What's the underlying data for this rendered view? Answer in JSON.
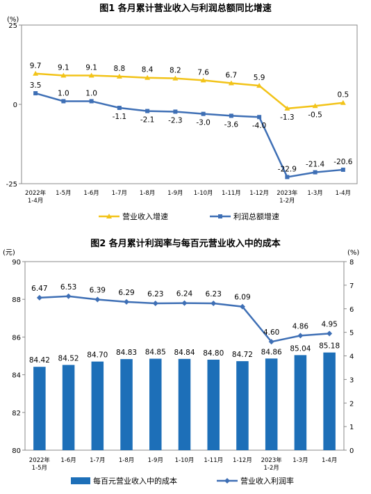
{
  "chart_data": [
    {
      "type": "line",
      "title": "图1  各月累计营业收入与利润总额同比增速",
      "unit_label": "(%)",
      "categories": [
        [
          "2022年",
          "1-4月"
        ],
        [
          "1-5月"
        ],
        [
          "1-6月"
        ],
        [
          "1-7月"
        ],
        [
          "1-8月"
        ],
        [
          "1-9月"
        ],
        [
          "1-10月"
        ],
        [
          "1-11月"
        ],
        [
          "1-12月"
        ],
        [
          "2023年",
          "1-2月"
        ],
        [
          "1-3月"
        ],
        [
          "1-4月"
        ]
      ],
      "ylim": [
        -25,
        25
      ],
      "yticks": [
        25,
        0,
        -25
      ],
      "grid": false,
      "legend_position": "bottom",
      "series": [
        {
          "name": "营业收入增速",
          "color": "#F2C318",
          "marker": "triangle",
          "values": [
            9.7,
            9.1,
            9.1,
            8.8,
            8.4,
            8.2,
            7.6,
            6.7,
            5.9,
            -1.3,
            -0.5,
            0.5
          ]
        },
        {
          "name": "利润总额增速",
          "color": "#3E6FB5",
          "marker": "square",
          "values": [
            3.5,
            1.0,
            1.0,
            -1.1,
            -2.1,
            -2.3,
            -3.0,
            -3.6,
            -4.0,
            -22.9,
            -21.4,
            -20.6
          ]
        }
      ]
    },
    {
      "type": "bar",
      "title": "图2  各月累计利润率与每百元营业收入中的成本",
      "left_unit_label": "(元)",
      "right_unit_label": "(%)",
      "categories": [
        [
          "2022年",
          "1-5月"
        ],
        [
          "1-6月"
        ],
        [
          "1-7月"
        ],
        [
          "1-8月"
        ],
        [
          "1-9月"
        ],
        [
          "1-10月"
        ],
        [
          "1-11月"
        ],
        [
          "1-12月"
        ],
        [
          "2023年",
          "1-2月"
        ],
        [
          "1-3月"
        ],
        [
          "1-4月"
        ]
      ],
      "ylim": [
        80,
        90
      ],
      "yticks": [
        80,
        82,
        84,
        86,
        88,
        90
      ],
      "y2lim": [
        0,
        8
      ],
      "y2ticks": [
        0,
        1,
        2,
        3,
        4,
        5,
        6,
        7,
        8
      ],
      "grid": false,
      "legend_position": "bottom",
      "series": [
        {
          "name": "每百元营业收入中的成本",
          "kind": "bar",
          "axis": "left",
          "color": "#1D6FB8",
          "values": [
            84.42,
            84.52,
            84.7,
            84.83,
            84.85,
            84.84,
            84.8,
            84.72,
            84.86,
            85.04,
            85.18
          ]
        },
        {
          "name": "营业收入利润率",
          "kind": "line",
          "axis": "right",
          "color": "#3E6FB5",
          "marker": "diamond",
          "values": [
            6.47,
            6.53,
            6.39,
            6.29,
            6.23,
            6.24,
            6.23,
            6.09,
            4.6,
            4.86,
            4.95
          ]
        }
      ]
    }
  ]
}
